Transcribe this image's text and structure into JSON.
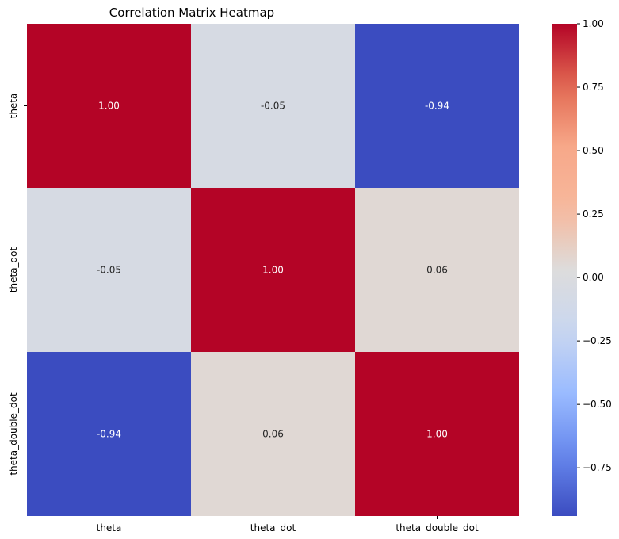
{
  "chart_data": {
    "type": "heatmap",
    "title": "Correlation Matrix Heatmap",
    "x_categories": [
      "theta",
      "theta_dot",
      "theta_double_dot"
    ],
    "y_categories": [
      "theta",
      "theta_dot",
      "theta_double_dot"
    ],
    "values": [
      [
        1.0,
        -0.05,
        -0.94
      ],
      [
        -0.05,
        1.0,
        0.06
      ],
      [
        -0.94,
        0.06,
        1.0
      ]
    ],
    "value_labels": [
      [
        "1.00",
        "-0.05",
        "-0.94"
      ],
      [
        "-0.05",
        "1.00",
        "0.06"
      ],
      [
        "-0.94",
        "0.06",
        "1.00"
      ]
    ],
    "colormap": "coolwarm",
    "color_range": [
      -0.94,
      1.0
    ],
    "colorbar_ticks": [
      1.0,
      0.75,
      0.5,
      0.25,
      0.0,
      -0.25,
      -0.5,
      -0.75
    ],
    "colorbar_tick_labels": [
      "1.00",
      "0.75",
      "0.50",
      "0.25",
      "0.00",
      "−0.25",
      "−0.50",
      "−0.75"
    ],
    "colorbar_placement": "right",
    "grid": false,
    "colors": {
      "cmap_stops": [
        "#3b4cc0",
        "#6788ee",
        "#9abbff",
        "#c9d7f0",
        "#dddcdc",
        "#f7b89c",
        "#f7a889",
        "#e26952",
        "#b40426"
      ]
    }
  }
}
